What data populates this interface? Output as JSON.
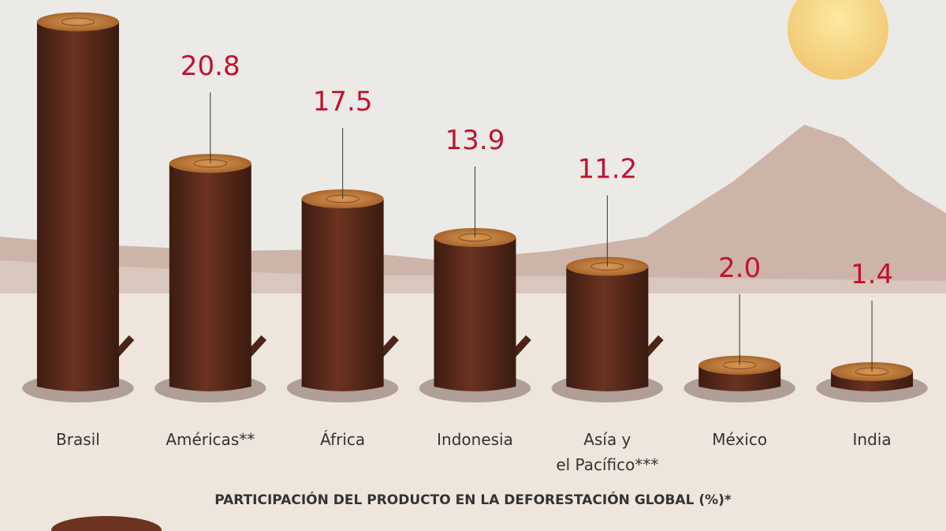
{
  "chart_data": {
    "type": "bar",
    "categories": [
      "Brasil",
      "Américas**",
      "África",
      "Indonesia",
      "Asía y\nel Pacífico***",
      "México",
      "India"
    ],
    "values": [
      34,
      20.8,
      17.5,
      13.9,
      11.2,
      2.0,
      1.4
    ],
    "value_labels": [
      null,
      "20.8",
      "17.5",
      "13.9",
      "11.2",
      "2.0",
      "1.4"
    ],
    "color": "#5a2a1a",
    "ylim": [
      0,
      35
    ],
    "x_label": "PARTICIPACIÓN DEL PRODUCTO EN LA DEFORESTACIÓN GLOBAL (%)*"
  }
}
